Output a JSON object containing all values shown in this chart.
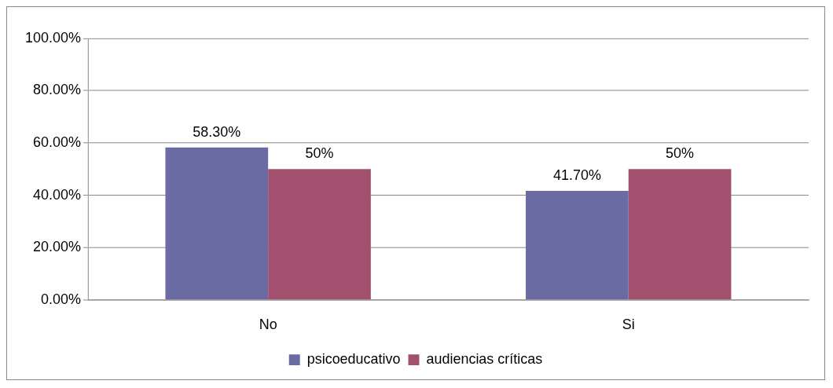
{
  "chart_data": {
    "type": "bar",
    "categories": [
      "No",
      "Si"
    ],
    "series": [
      {
        "name": "psicoeducativo",
        "color": "#6b6ba3",
        "values": [
          58.3,
          41.7
        ],
        "value_labels": [
          "58.30%",
          "41.70%"
        ]
      },
      {
        "name": "audiencias críticas",
        "color": "#a3506f",
        "values": [
          50,
          50
        ],
        "value_labels": [
          "50%",
          "50%"
        ]
      }
    ],
    "ylim": [
      0,
      100
    ],
    "yticks": [
      {
        "value": 0,
        "label": "0.00%"
      },
      {
        "value": 20,
        "label": "20.00%"
      },
      {
        "value": 40,
        "label": "40.00%"
      },
      {
        "value": 60,
        "label": "60.00%"
      },
      {
        "value": 80,
        "label": "80.00%"
      },
      {
        "value": 100,
        "label": "100.00%"
      }
    ],
    "grid": "y",
    "legend": "bottom"
  }
}
